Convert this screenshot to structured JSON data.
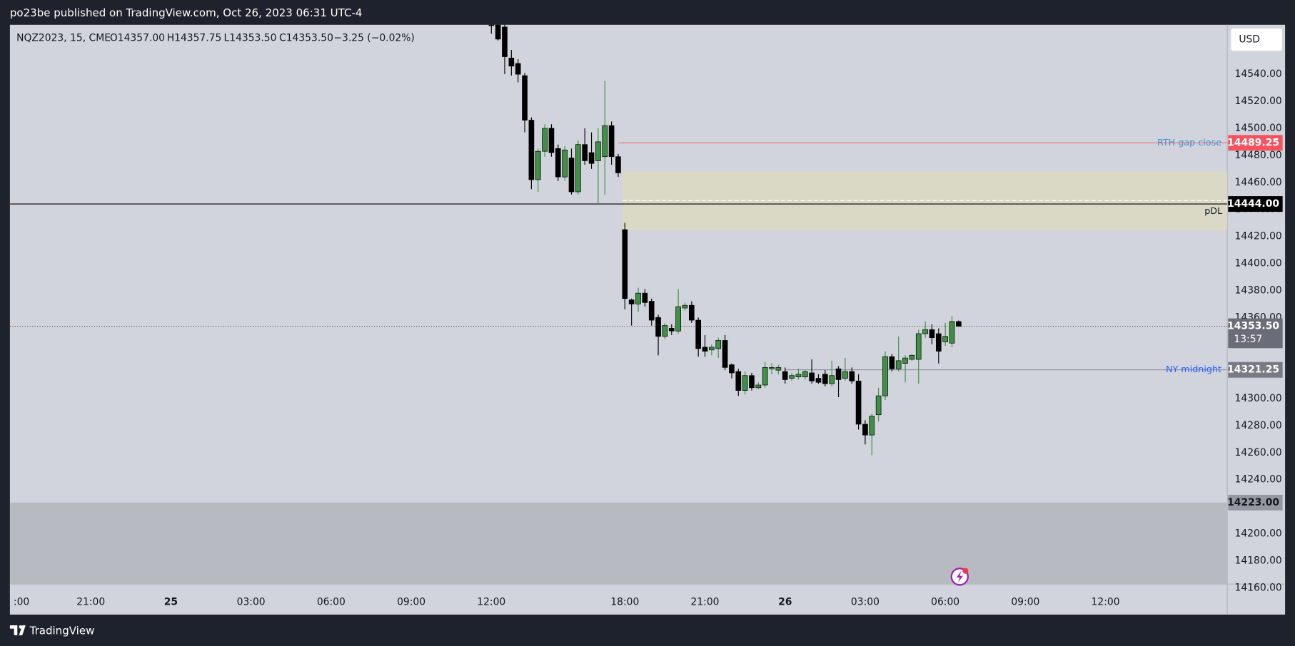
{
  "chart_data": {
    "type": "candlestick",
    "title": "po23be published on TradingView.com, Oct 26, 2023 06:31 UTC-4",
    "legend": {
      "symbol": "NQZ2023, 15, CME",
      "open": "O14357.00",
      "high": "H14357.75",
      "low": "L14353.50",
      "close": "C14353.50",
      "change": "−3.25 (−0.02%)"
    },
    "currency": "USD",
    "brand": "TradingView",
    "up_color": "#3f8f45",
    "down_color": "#000000",
    "grid": false,
    "x": [
      60,
      61,
      62,
      63,
      64,
      65,
      66,
      67,
      68,
      69,
      70,
      71,
      72,
      73,
      74,
      75,
      76,
      77,
      78,
      79,
      80,
      81,
      82,
      83,
      84,
      85,
      86,
      87,
      88,
      89,
      90,
      91,
      92,
      93,
      94,
      95,
      96,
      97,
      98,
      99,
      100,
      101,
      102,
      103,
      104,
      105,
      106,
      107,
      108,
      109,
      110,
      111,
      112,
      113,
      114,
      115,
      116,
      117,
      118,
      119,
      120,
      121,
      122,
      123,
      124,
      125,
      126,
      127,
      128,
      129,
      130
    ],
    "open": [
      14580,
      14578,
      14575,
      14552,
      14548,
      14539,
      14506,
      14462,
      14483,
      14500,
      14485,
      14464,
      14478,
      14453,
      14488,
      14482,
      14476,
      14479,
      14502,
      14479,
      14425,
      14373,
      14370,
      14378,
      14372,
      14360,
      14346,
      14352,
      14350,
      14367,
      14369,
      14358,
      14338,
      14336,
      14337,
      14343,
      14325,
      14320,
      14306,
      14317,
      14308,
      14310,
      14322,
      14321,
      14320,
      14315,
      14316,
      14316,
      14319,
      14315,
      14318,
      14311,
      14322,
      14315,
      14320,
      14313,
      14281,
      14273,
      14288,
      14302,
      14331,
      14322,
      14326,
      14329,
      14329,
      14348,
      14351,
      14348,
      14342,
      14341,
      14357
    ],
    "high": [
      14582,
      14580,
      14578,
      14558,
      14551,
      14541,
      14508,
      14485,
      14503,
      14503,
      14488,
      14487,
      14485,
      14491,
      14500,
      14497,
      14500,
      14535,
      14505,
      14481,
      14430,
      14374,
      14382,
      14381,
      14374,
      14362,
      14356,
      14355,
      14381,
      14371,
      14372,
      14360,
      14347,
      14340,
      14345,
      14347,
      14326,
      14322,
      14320,
      14319,
      14312,
      14327,
      14326,
      14325,
      14323,
      14319,
      14322,
      14321,
      14329,
      14318,
      14321,
      14328,
      14324,
      14330,
      14323,
      14318,
      14284,
      14289,
      14308,
      14335,
      14333,
      14346,
      14332,
      14333,
      14351,
      14357,
      14355,
      14352,
      14356,
      14361,
      14357.75
    ],
    "low": [
      14570,
      14565,
      14540,
      14539,
      14534,
      14497,
      14455,
      14453,
      14479,
      14479,
      14461,
      14461,
      14451,
      14451,
      14473,
      14470,
      14444,
      14451,
      14473,
      14464,
      14366,
      14354,
      14364,
      14368,
      14354,
      14332,
      14344,
      14347,
      14348,
      14365,
      14356,
      14331,
      14331,
      14332,
      14330,
      14321,
      14315,
      14302,
      14303,
      14306,
      14307,
      14308,
      14318,
      14318,
      14311,
      14313,
      14314,
      14314,
      14311,
      14311,
      14309,
      14309,
      14301,
      14313,
      14311,
      14277,
      14266,
      14258,
      14283,
      14299,
      14320,
      14320,
      14312,
      14328,
      14311,
      14345,
      14340,
      14326,
      14339,
      14338,
      14353.5
    ],
    "close": [
      14576,
      14566,
      14553,
      14546,
      14540,
      14506,
      14462,
      14483,
      14500,
      14482,
      14464,
      14484,
      14453,
      14488,
      14476,
      14474,
      14490,
      14502,
      14479,
      14467,
      14374,
      14370,
      14378,
      14371,
      14358,
      14346,
      14354,
      14350,
      14368,
      14369,
      14358,
      14337,
      14335,
      14338,
      14343,
      14323,
      14319,
      14306,
      14317,
      14308,
      14310,
      14323,
      14323,
      14323,
      14314,
      14317,
      14318,
      14320,
      14313,
      14312,
      14311,
      14317,
      14314,
      14320,
      14313,
      14281,
      14273,
      14287,
      14302,
      14331,
      14322,
      14328,
      14330,
      14332,
      14348,
      14351,
      14345,
      14335,
      14346,
      14357,
      14353.5
    ],
    "xlim": [
      -12.12,
      170.24
    ],
    "xticks": [
      {
        "value": -12,
        "label": ":00"
      },
      {
        "value": 0,
        "label": "21:00"
      },
      {
        "value": 12,
        "label": "25",
        "bold": true
      },
      {
        "value": 24,
        "label": "03:00"
      },
      {
        "value": 36,
        "label": "06:00"
      },
      {
        "value": 48,
        "label": "09:00"
      },
      {
        "value": 60,
        "label": "12:00"
      },
      {
        "value": 80,
        "label": "18:00"
      },
      {
        "value": 92,
        "label": "21:00"
      },
      {
        "value": 104,
        "label": "26",
        "bold": true
      },
      {
        "value": 116,
        "label": "03:00"
      },
      {
        "value": 128,
        "label": "06:00"
      },
      {
        "value": 140,
        "label": "09:00"
      },
      {
        "value": 152,
        "label": "12:00"
      }
    ],
    "ylim": [
      14162.7,
      14576.6
    ],
    "yticks": [
      {
        "value": 14160,
        "label": "14160.00"
      },
      {
        "value": 14180,
        "label": "14180.00"
      },
      {
        "value": 14200,
        "label": "14200.00"
      },
      {
        "value": 14220,
        "label": "14220.00"
      },
      {
        "value": 14240,
        "label": "14240.00"
      },
      {
        "value": 14260,
        "label": "14260.00"
      },
      {
        "value": 14280,
        "label": "14280.00"
      },
      {
        "value": 14300,
        "label": "14300.00"
      },
      {
        "value": 14320,
        "label": "14320.00"
      },
      {
        "value": 14340,
        "label": "14340.00"
      },
      {
        "value": 14360,
        "label": "14360.00"
      },
      {
        "value": 14380,
        "label": "14380.00"
      },
      {
        "value": 14400,
        "label": "14400.00"
      },
      {
        "value": 14420,
        "label": "14420.00"
      },
      {
        "value": 14440,
        "label": "14440.00"
      },
      {
        "value": 14460,
        "label": "14460.00"
      },
      {
        "value": 14480,
        "label": "14480.00"
      },
      {
        "value": 14500,
        "label": "14500.00"
      },
      {
        "value": 14520,
        "label": "14520.00"
      },
      {
        "value": 14540,
        "label": "14540.00"
      }
    ],
    "shade": {
      "value": 14223,
      "label": "14223.00",
      "color": "#b8bac1"
    },
    "zone": {
      "low": 14424.5,
      "high": 14468,
      "mid": 14446.5,
      "start": 80,
      "color": "#d9d9c6"
    },
    "prev_day_low": {
      "name": "pDL",
      "value": 14444,
      "label": "14444.00",
      "color": "#000000"
    },
    "levels": [
      {
        "name": "RTH gap close",
        "value": 14489.25,
        "start": 79,
        "color": "#f7525f",
        "text_color": "#4a90c8"
      },
      {
        "name": "NY midnight",
        "value": 14321.25,
        "start": 104,
        "color": "#787b86",
        "text_color": "#2962ff"
      }
    ],
    "last_price": {
      "value": 14353.5,
      "label": "14353.50",
      "countdown": "13:57",
      "color": "#6a6d78"
    }
  }
}
